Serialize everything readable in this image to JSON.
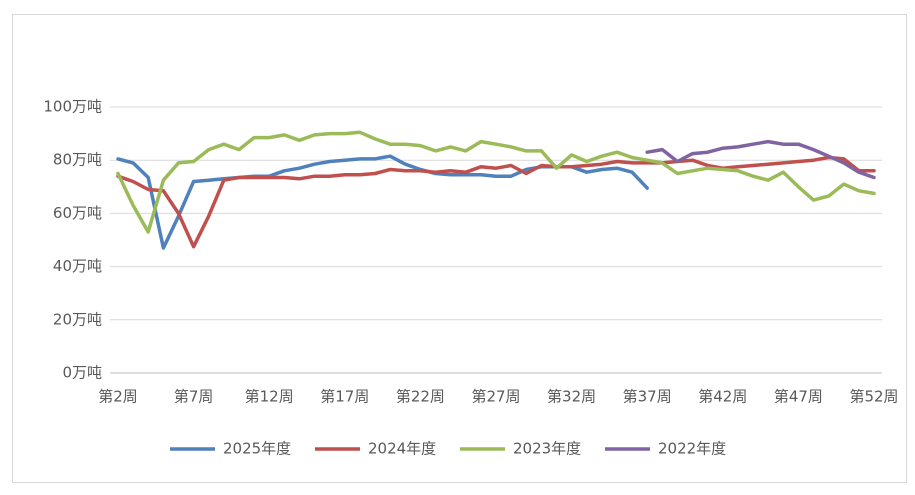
{
  "chart_data": {
    "type": "line",
    "categories": [
      "第2周",
      null,
      null,
      null,
      null,
      "第7周",
      null,
      null,
      null,
      null,
      "第12周",
      null,
      null,
      null,
      null,
      "第17周",
      null,
      null,
      null,
      null,
      "第22周",
      null,
      null,
      null,
      null,
      "第27周",
      null,
      null,
      null,
      null,
      "第32周",
      null,
      null,
      null,
      null,
      "第37周",
      null,
      null,
      null,
      null,
      "第42周",
      null,
      null,
      null,
      null,
      "第47周",
      null,
      null,
      null,
      null,
      "第52周"
    ],
    "ylim": [
      0,
      100
    ],
    "yticks": [
      {
        "value": 0,
        "label": "0万吨"
      },
      {
        "value": 20,
        "label": "20万吨"
      },
      {
        "value": 40,
        "label": "40万吨"
      },
      {
        "value": 60,
        "label": "60万吨"
      },
      {
        "value": 80,
        "label": "80万吨"
      },
      {
        "value": 100,
        "label": "100万吨"
      }
    ],
    "grid": true,
    "legend": "bottom",
    "series": [
      {
        "name": "2025年度",
        "color": "#4f81bd",
        "values": [
          80.5,
          79,
          73.5,
          47,
          59,
          72,
          72.5,
          73,
          73.5,
          74,
          74,
          76,
          77,
          78.5,
          79.5,
          80,
          80.5,
          80.5,
          81.5,
          78.5,
          76.5,
          75,
          74.5,
          74.5,
          74.5,
          74,
          74,
          76.5,
          77.5,
          77.5,
          77.5,
          75.5,
          76.5,
          77,
          75.5,
          69.5,
          null,
          null,
          null,
          null,
          null,
          null,
          null,
          null,
          null,
          null,
          null,
          null,
          null,
          null,
          null
        ]
      },
      {
        "name": "2024年度",
        "color": "#c0504d",
        "values": [
          74,
          72,
          69,
          68.5,
          60,
          47.5,
          59,
          72.5,
          73.5,
          73.5,
          73.5,
          73.5,
          73,
          74,
          74,
          74.5,
          74.5,
          75,
          76.5,
          76,
          76,
          75.5,
          76,
          75.5,
          77.5,
          77,
          78,
          75,
          78,
          77.5,
          77.5,
          78,
          78.5,
          79.5,
          79,
          79,
          79,
          79.5,
          80,
          78,
          77,
          77.5,
          78,
          78.5,
          79,
          79.5,
          80,
          81,
          80.5,
          76,
          76
        ]
      },
      {
        "name": "2023年度",
        "color": "#9bbb59",
        "values": [
          75,
          63,
          53,
          72.5,
          79,
          79.5,
          84,
          86,
          84,
          88.5,
          88.5,
          89.5,
          87.5,
          89.5,
          90,
          90,
          90.5,
          88,
          86,
          86,
          85.5,
          83.5,
          85,
          83.5,
          87,
          86,
          85,
          83.5,
          83.5,
          77,
          82,
          79.5,
          81.5,
          83,
          81,
          80,
          79,
          75,
          76,
          77,
          76.5,
          76,
          74,
          72.5,
          75.5,
          70,
          65,
          66.5,
          71,
          68.5,
          67.5
        ]
      },
      {
        "name": "2022年度",
        "color": "#8064a2",
        "values": [
          null,
          null,
          null,
          null,
          null,
          null,
          null,
          null,
          null,
          null,
          null,
          null,
          null,
          null,
          null,
          null,
          null,
          null,
          null,
          null,
          null,
          null,
          null,
          null,
          null,
          null,
          null,
          null,
          null,
          null,
          null,
          null,
          null,
          null,
          null,
          83,
          84,
          79.5,
          82.5,
          83,
          84.5,
          85,
          86,
          87,
          86,
          86,
          84,
          81.5,
          79,
          75.5,
          73.5
        ]
      }
    ]
  }
}
